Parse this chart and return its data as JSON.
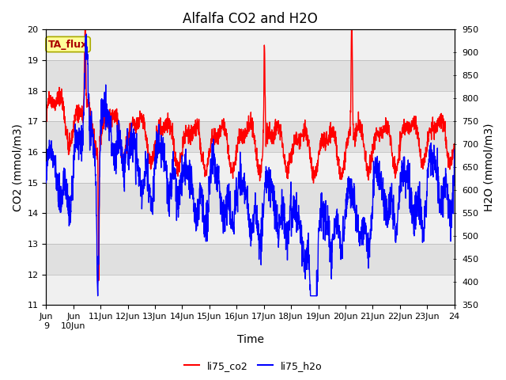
{
  "title": "Alfalfa CO2 and H2O",
  "xlabel": "Time",
  "ylabel_left": "CO2 (mmol/m3)",
  "ylabel_right": "H2O (mmol/m3)",
  "ylim_left": [
    11.0,
    20.0
  ],
  "ylim_right": [
    350,
    950
  ],
  "yticks_left": [
    11.0,
    12.0,
    13.0,
    14.0,
    15.0,
    16.0,
    17.0,
    18.0,
    19.0,
    20.0
  ],
  "yticks_right": [
    350,
    400,
    450,
    500,
    550,
    600,
    650,
    700,
    750,
    800,
    850,
    900,
    950
  ],
  "co2_color": "#FF0000",
  "h2o_color": "#0000FF",
  "background_color": "#FFFFFF",
  "plot_bg_color": "#E0E0E0",
  "band_color": "#F0F0F0",
  "legend_co2": "li75_co2",
  "legend_h2o": "li75_h2o",
  "annotation_text": "TA_flux",
  "annotation_bg": "#FFFF99",
  "annotation_border": "#AAAA00",
  "annotation_text_color": "#AA0000",
  "line_width": 1.0,
  "title_fontsize": 12,
  "axis_fontsize": 10,
  "tick_fontsize": 8
}
